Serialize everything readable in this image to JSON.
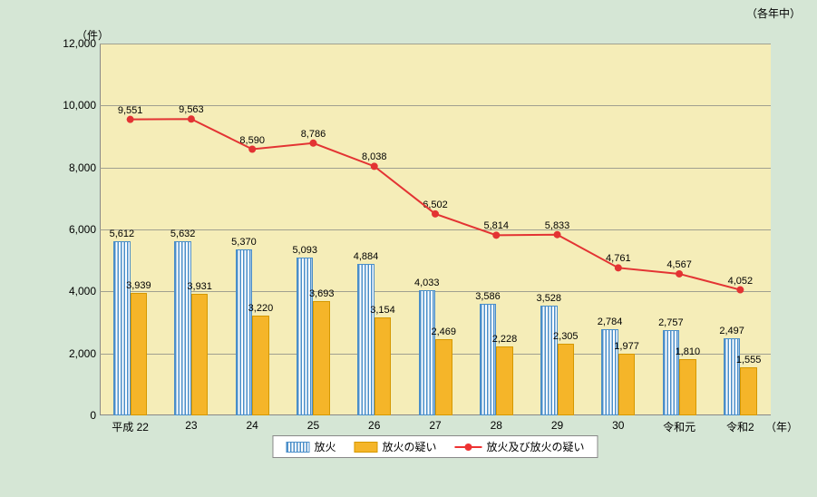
{
  "top_note": "（各年中）",
  "y_axis_label": "（件）",
  "x_axis_unit": "（年）",
  "chart": {
    "type": "bar+line",
    "ylim": [
      0,
      12000
    ],
    "ytick_step": 2000,
    "ytick_labels": [
      "0",
      "2,000",
      "4,000",
      "6,000",
      "8,000",
      "10,000",
      "12,000"
    ],
    "categories": [
      "平成 22",
      "23",
      "24",
      "25",
      "26",
      "27",
      "28",
      "29",
      "30",
      "令和元",
      "令和2"
    ],
    "series_bar1": {
      "name": "放火",
      "values": [
        5612,
        5632,
        5370,
        5093,
        4884,
        4033,
        3586,
        3528,
        2784,
        2757,
        2497
      ],
      "labels": [
        "5,612",
        "5,632",
        "5,370",
        "5,093",
        "4,884",
        "4,033",
        "3,586",
        "3,528",
        "2,784",
        "2,757",
        "2,497"
      ],
      "color": "#4a8ec9",
      "style": "hatched"
    },
    "series_bar2": {
      "name": "放火の疑い",
      "values": [
        3939,
        3931,
        3220,
        3693,
        3154,
        2469,
        2228,
        2305,
        1977,
        1810,
        1555
      ],
      "labels": [
        "3,939",
        "3,931",
        "3,220",
        "3,693",
        "3,154",
        "2,469",
        "2,228",
        "2,305",
        "1,977",
        "1,810",
        "1,555"
      ],
      "color": "#f5b529",
      "style": "solid"
    },
    "series_line": {
      "name": "放火及び放火の疑い",
      "values": [
        9551,
        9563,
        8590,
        8786,
        8038,
        6502,
        5814,
        5833,
        4761,
        4567,
        4052
      ],
      "labels": [
        "9,551",
        "9,563",
        "8,590",
        "8,786",
        "8,038",
        "6,502",
        "5,814",
        "5,833",
        "4,761",
        "4,567",
        "4,052"
      ],
      "color": "#e33333",
      "marker": "circle",
      "line_width": 2
    },
    "background_color": "#f5edb8",
    "outer_background": "#d5e6d5",
    "grid_color": "#a0a090",
    "bar_cluster_width": 0.55,
    "label_fontsize": 11,
    "tick_fontsize": 12
  },
  "legend": {
    "items": [
      {
        "key": "bar1",
        "label": "放火"
      },
      {
        "key": "bar2",
        "label": "放火の疑い"
      },
      {
        "key": "line",
        "label": "放火及び放火の疑い"
      }
    ]
  }
}
